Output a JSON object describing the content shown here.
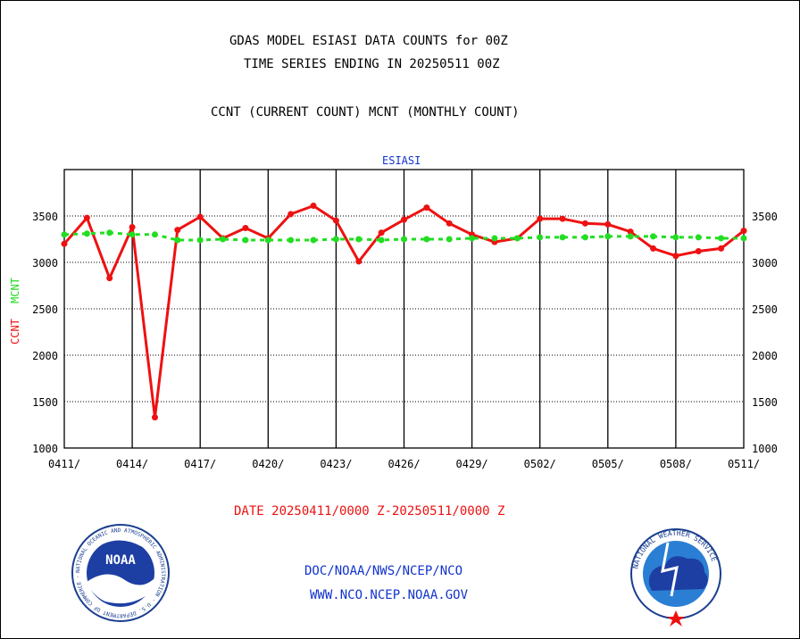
{
  "header": {
    "title_line1": "GDAS MODEL ESIASI DATA COUNTS for 00Z",
    "title_line2": "TIME SERIES ENDING IN 20250511 00Z",
    "subtitle": "CCNT (CURRENT COUNT) MCNT (MONTHLY COUNT)",
    "panel_label": "ESIASI"
  },
  "footer": {
    "date_range": "DATE 20250411/0000 Z-20250511/0000 Z",
    "org_line1": "DOC/NOAA/NWS/NCEP/NCO",
    "org_line2": "WWW.NCO.NCEP.NOAA.GOV",
    "noaa_logo_text": "NOAA",
    "noaa_ring_text": "NATIONAL OCEANIC AND ATMOSPHERIC ADMINISTRATION · U.S. DEPARTMENT OF COMMERCE ·",
    "nws_ring_text": "NATIONAL WEATHER SERVICE"
  },
  "colors": {
    "ccnt": "#ee1111",
    "mcnt": "#22dd22",
    "panel_label": "#1133cc",
    "footer_links": "#1133cc",
    "date_text": "#ee1111"
  },
  "chart_data": {
    "type": "line",
    "ylabel_parts": [
      {
        "text": "CCNT",
        "color": "#ee1111"
      },
      {
        "text": "MCNT",
        "color": "#22dd22"
      }
    ],
    "ylim": [
      1000,
      4000
    ],
    "yticks": [
      1000,
      1500,
      2000,
      2500,
      3000,
      3500
    ],
    "x_tick_labels": [
      "0411/",
      "0414/",
      "0417/",
      "0420/",
      "0423/",
      "0426/",
      "0429/",
      "0502/",
      "0505/",
      "0508/",
      "0511/"
    ],
    "x_tick_days": [
      0,
      3,
      6,
      9,
      12,
      15,
      18,
      21,
      24,
      27,
      30
    ],
    "grid": true,
    "series": [
      {
        "key": "ccnt",
        "line_style": "solid",
        "days": [
          0,
          1,
          2,
          3,
          4,
          5,
          6,
          7,
          8,
          9,
          10,
          11,
          12,
          13,
          14,
          15,
          16,
          17,
          18,
          19,
          20,
          21,
          22,
          23,
          24,
          25,
          26,
          27,
          28,
          29,
          30
        ],
        "values": [
          3200,
          3480,
          2830,
          3380,
          1330,
          3350,
          3490,
          3260,
          3370,
          3260,
          3520,
          3610,
          3450,
          3010,
          3320,
          3460,
          3590,
          3420,
          3300,
          3220,
          3260,
          3470,
          3470,
          3420,
          3410,
          3330,
          3150,
          3070,
          3120,
          3150,
          3340
        ]
      },
      {
        "key": "mcnt",
        "line_style": "dashed",
        "days": [
          0,
          1,
          2,
          3,
          4,
          5,
          6,
          7,
          8,
          9,
          10,
          11,
          12,
          13,
          14,
          15,
          16,
          17,
          18,
          19,
          20,
          21,
          22,
          23,
          24,
          25,
          26,
          27,
          28,
          29,
          30
        ],
        "values": [
          3300,
          3310,
          3320,
          3300,
          3300,
          3240,
          3240,
          3250,
          3240,
          3240,
          3240,
          3240,
          3250,
          3250,
          3240,
          3250,
          3250,
          3250,
          3260,
          3260,
          3260,
          3270,
          3270,
          3270,
          3280,
          3280,
          3280,
          3270,
          3270,
          3260,
          3260
        ]
      }
    ]
  }
}
